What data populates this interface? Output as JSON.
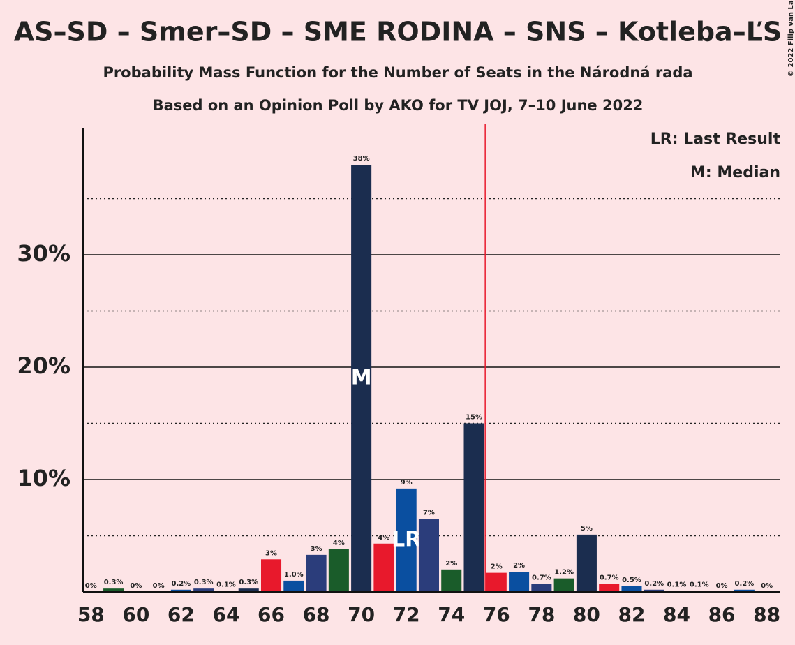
{
  "chart_data": {
    "type": "bar",
    "title": "AS–SD – Smer–SD – SME RODINA – SNS – Kotleba–ĽS",
    "subtitle": "Probability Mass Function for the Number of Seats in the Národná rada",
    "subtitle2": "Based on an Opinion Poll by AKO for TV JOJ, 7–10 June 2022",
    "copyright": "© 2022 Filip van Laenen",
    "legend": [
      "LR: Last Result",
      "M: Median"
    ],
    "categories": [
      58,
      59,
      60,
      61,
      62,
      63,
      64,
      65,
      66,
      67,
      68,
      69,
      70,
      71,
      72,
      73,
      74,
      75,
      76,
      77,
      78,
      79,
      80,
      81,
      82,
      83,
      84,
      85,
      86,
      87,
      88
    ],
    "values": [
      0,
      0.3,
      0,
      0,
      0.2,
      0.3,
      0.1,
      0.3,
      2.9,
      1.0,
      3.3,
      3.8,
      38,
      4.3,
      9.2,
      6.5,
      2.0,
      15,
      1.7,
      1.8,
      0.7,
      1.2,
      5.1,
      0.7,
      0.5,
      0.2,
      0.1,
      0.1,
      0,
      0.2,
      0
    ],
    "value_labels": [
      "0%",
      "0.3%",
      "0%",
      "0%",
      "0.2%",
      "0.3%",
      "0.1%",
      "0.3%",
      "3%",
      "1.0%",
      "3%",
      "4%",
      "38%",
      "4%",
      "9%",
      "7%",
      "2%",
      "15%",
      "2%",
      "2%",
      "0.7%",
      "1.2%",
      "5%",
      "0.7%",
      "0.5%",
      "0.2%",
      "0.1%",
      "0.1%",
      "0%",
      "0.2%",
      "0%"
    ],
    "colors": [
      "#e8192c",
      "#0a4fa0",
      "#2b3d7b",
      "#1a5c2a",
      "#1b2d4f"
    ],
    "color_start": 66,
    "xticks": [
      58,
      60,
      62,
      64,
      66,
      68,
      70,
      72,
      74,
      76,
      78,
      80,
      82,
      84,
      86,
      88
    ],
    "xlim": [
      57.65,
      88.6
    ],
    "ylim": [
      0,
      41.3
    ],
    "yticks": [
      {
        "value": 10,
        "label": "10%"
      },
      {
        "value": 20,
        "label": "20%"
      },
      {
        "value": 30,
        "label": "30%"
      }
    ],
    "minor_yticks": [
      5,
      15,
      25,
      35
    ],
    "median": 70,
    "median_label": "M",
    "last_result": 72,
    "last_result_label": "LR",
    "majority": 76,
    "grid": true
  }
}
